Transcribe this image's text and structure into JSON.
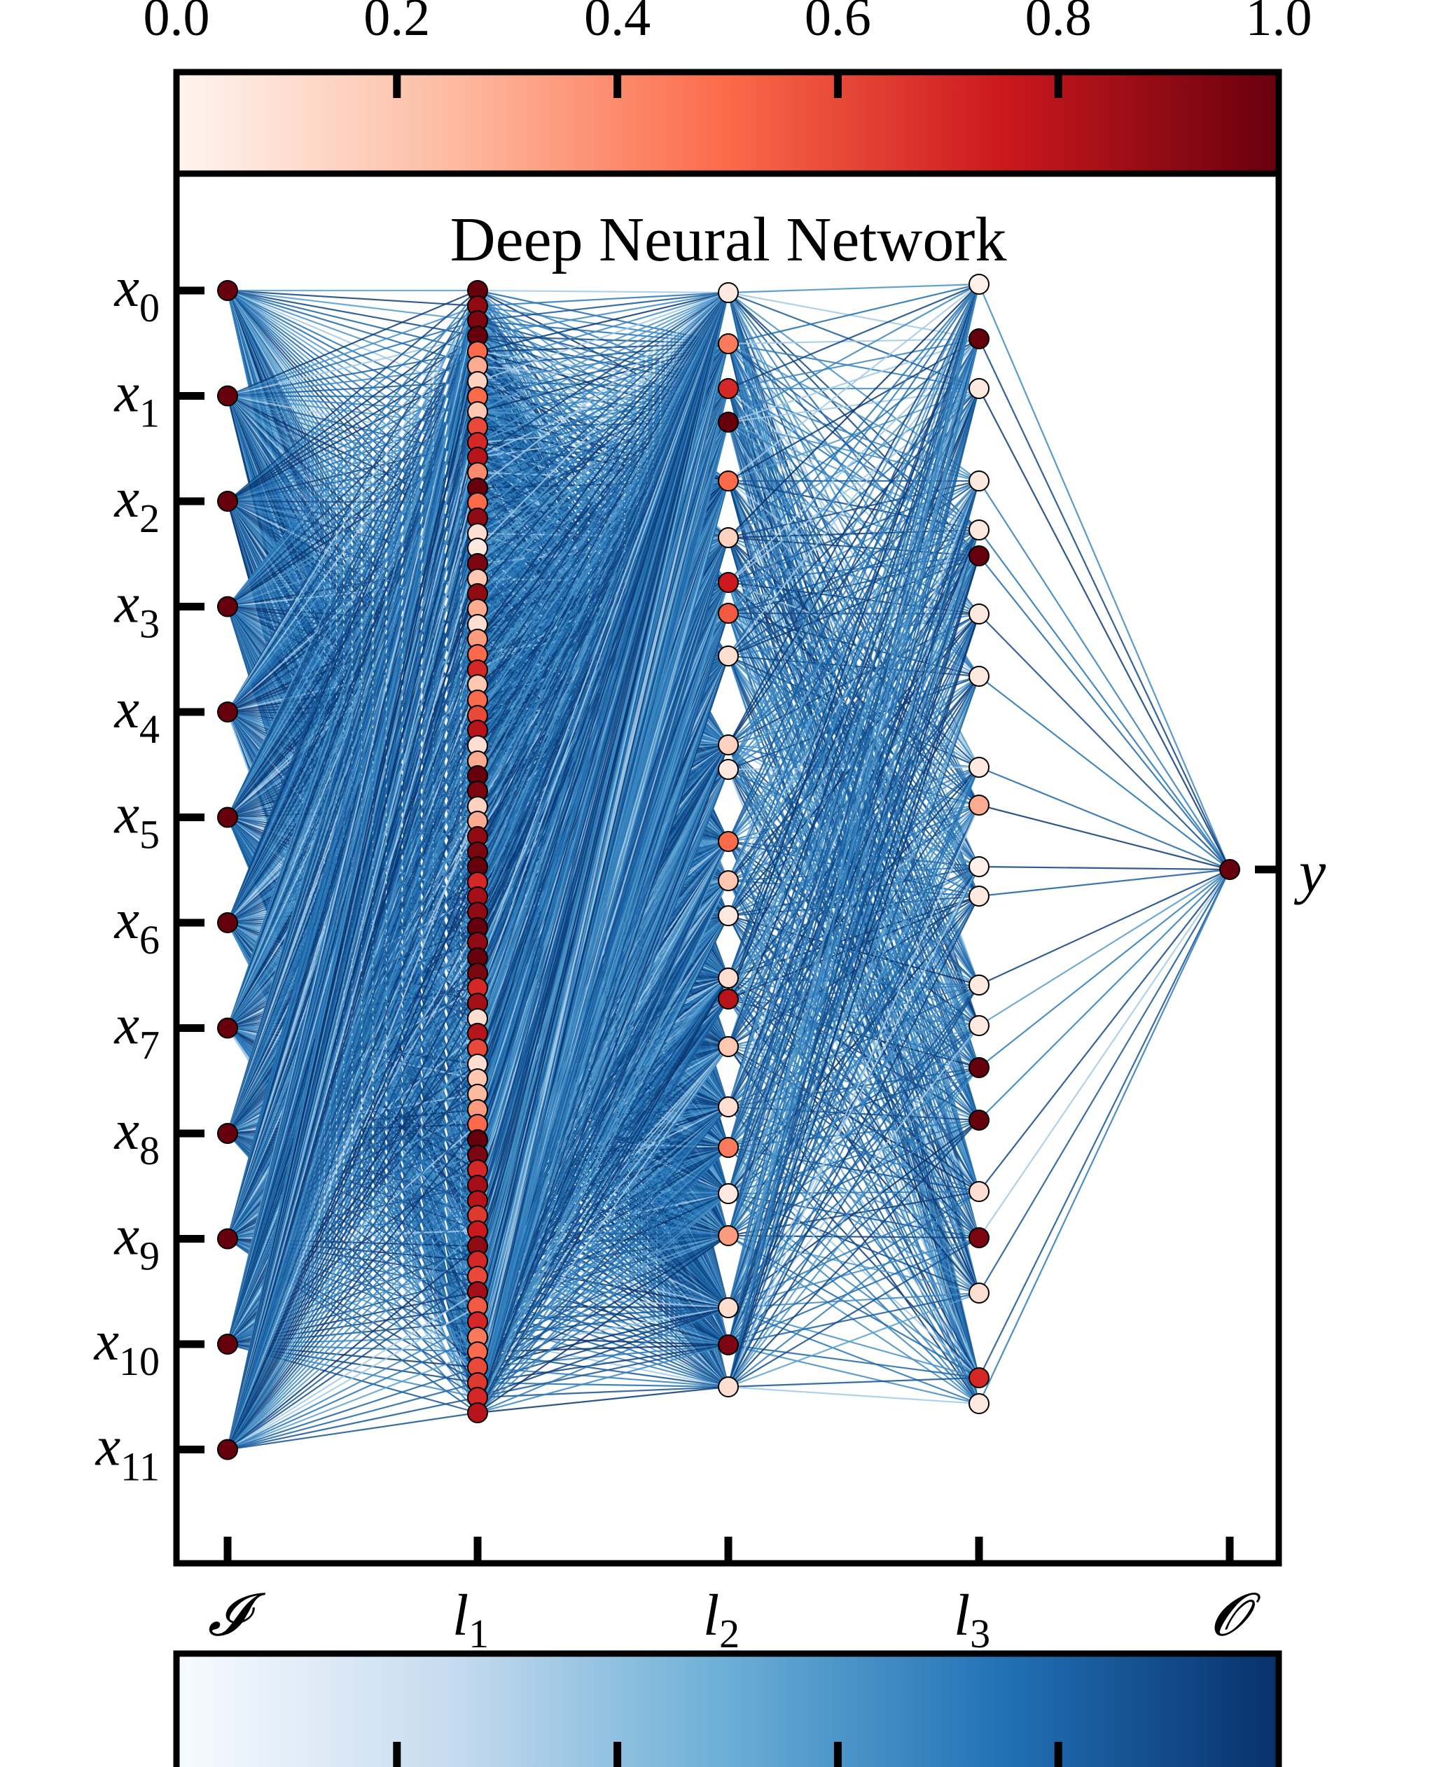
{
  "title": "Deep Neural Network",
  "top_colorbar": {
    "tick_labels": [
      "0.0",
      "0.2",
      "0.4",
      "0.6",
      "0.8",
      "1.0"
    ],
    "colormap": "Reds",
    "stops": [
      "#fff5f0",
      "#fcbba1",
      "#fb6a4a",
      "#cb181d",
      "#67000d"
    ]
  },
  "bottom_colorbar": {
    "colormap": "Blues",
    "stops": [
      "#f7fbff",
      "#c6dbef",
      "#6baed6",
      "#2171b5",
      "#08306b"
    ]
  },
  "left_labels": [
    {
      "base": "x",
      "sub": "0"
    },
    {
      "base": "x",
      "sub": "1"
    },
    {
      "base": "x",
      "sub": "2"
    },
    {
      "base": "x",
      "sub": "3"
    },
    {
      "base": "x",
      "sub": "4"
    },
    {
      "base": "x",
      "sub": "5"
    },
    {
      "base": "x",
      "sub": "6"
    },
    {
      "base": "x",
      "sub": "7"
    },
    {
      "base": "x",
      "sub": "8"
    },
    {
      "base": "x",
      "sub": "9"
    },
    {
      "base": "x",
      "sub": "10"
    },
    {
      "base": "x",
      "sub": "11"
    }
  ],
  "right_label": "y",
  "layer_labels": [
    {
      "base": "𝓘",
      "sub": ""
    },
    {
      "base": "l",
      "sub": "1"
    },
    {
      "base": "l",
      "sub": "2"
    },
    {
      "base": "l",
      "sub": "3"
    },
    {
      "base": "𝓞",
      "sub": ""
    }
  ],
  "edge_color": "#0b3d7f",
  "layers": [
    {
      "name": "I",
      "nodes": [
        1,
        1,
        1,
        1,
        1,
        1,
        1,
        1,
        1,
        1,
        1,
        1
      ]
    },
    {
      "name": "l1",
      "nodes": [
        1,
        0.9,
        0.95,
        1,
        0.5,
        0.3,
        0.15,
        0.5,
        0.2,
        0.6,
        0.7,
        0.8,
        0.4,
        1,
        0.5,
        0.9,
        0.1,
        0.05,
        0.95,
        0.2,
        0.9,
        0.3,
        0.1,
        0.35,
        0.5,
        0.7,
        0.2,
        0.5,
        0.6,
        0.8,
        0.1,
        0.3,
        1,
        0.95,
        0.15,
        0.3,
        0.9,
        0.95,
        1,
        0.7,
        0.85,
        0.9,
        1,
        0.9,
        1,
        0.95,
        0.7,
        0.85,
        0.1,
        0.8,
        0.6,
        0.1,
        0.2,
        0.25,
        0.35,
        0.5,
        1,
        0.95,
        0.7,
        0.85,
        0.8,
        0.65,
        0.75,
        0.9,
        0.7,
        0.6,
        0.85,
        0.55,
        0.7,
        0.45,
        0.5,
        0.6,
        0.65,
        0.7,
        0.8
      ]
    },
    {
      "name": "l2",
      "nodes": [
        0.05,
        0.45,
        0.7,
        1,
        0.5,
        0.15,
        0.75,
        0.55,
        0.1,
        0.15,
        0.05,
        0.5,
        0.2,
        0.05,
        0.1,
        0.8,
        0.2,
        0.1,
        0.45,
        0.05,
        0.35,
        0.1,
        0.95,
        0.1
      ]
    },
    {
      "name": "l3",
      "nodes": [
        0.02,
        1,
        0.05,
        0.05,
        0.05,
        1,
        0.05,
        0.05,
        0.05,
        0.3,
        0.02,
        0.05,
        0.05,
        0.05,
        1,
        1,
        0.1,
        0.95,
        0.1,
        0.7,
        0.05
      ]
    },
    {
      "name": "O",
      "nodes": [
        1
      ]
    }
  ]
}
